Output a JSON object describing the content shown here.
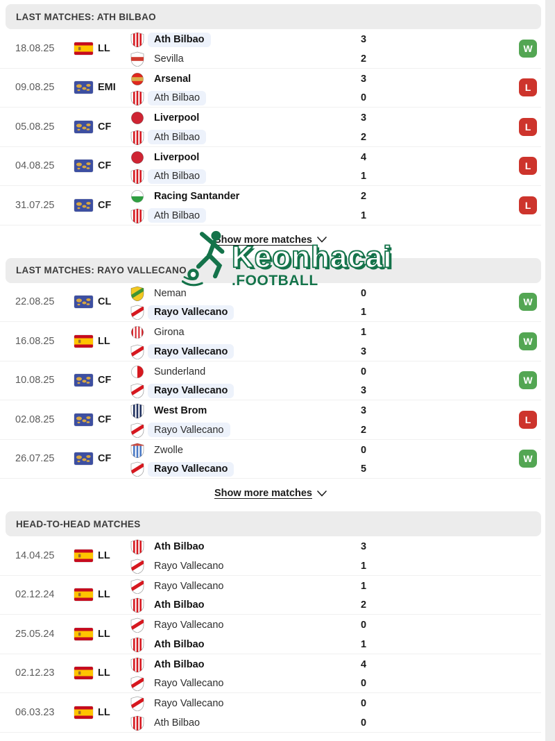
{
  "page": {
    "background": "#ffffff",
    "gutter_color": "#ececec",
    "header_bg": "#ececec"
  },
  "colors": {
    "win": "#53a653",
    "loss": "#cd342c",
    "highlight_chip": "#edf2fb",
    "watermark_green": "#14734a"
  },
  "icons": {
    "show_more_chevron": "chevron-down",
    "watermark_player": "soccer-player-kicking-ball"
  },
  "show_more_label": "Show more matches",
  "watermark": {
    "title": "Keonhacai",
    "subtitle": ".FOOTBALL"
  },
  "flags": {
    "es": {
      "name": "spain-flag",
      "colors": [
        "#c60b1e",
        "#ffc400",
        "#9a6a2f"
      ]
    },
    "world": {
      "name": "world-flag",
      "colors": [
        "#3d4fa1",
        "#d9a741"
      ]
    }
  },
  "crests": {
    "ath-bilbao": {
      "shape": "shield",
      "base": "#ffffff",
      "overlay": "#d6181f",
      "pattern": "stripes"
    },
    "sevilla": {
      "shape": "shield",
      "base": "#ffffff",
      "overlay": "#cf3a2e",
      "pattern": "band"
    },
    "arsenal": {
      "shape": "circle",
      "base": "#e0281e",
      "overlay": "#d8b04c",
      "pattern": "band"
    },
    "liverpool": {
      "shape": "circle",
      "base": "#cf2433",
      "overlay": "#cf2433",
      "pattern": "solid"
    },
    "racing-santander": {
      "shape": "circle",
      "base": "#ffffff",
      "overlay": "#2f9e41",
      "pattern": "bottom"
    },
    "neman": {
      "shape": "shield",
      "base": "#f2c822",
      "overlay": "#3f9432",
      "pattern": "diag"
    },
    "rayo-vallecano": {
      "shape": "shield",
      "base": "#ffffff",
      "overlay": "#d6181f",
      "pattern": "diag"
    },
    "girona": {
      "shape": "circle",
      "base": "#d6272e",
      "overlay": "#ffffff",
      "pattern": "stripes"
    },
    "sunderland": {
      "shape": "circle",
      "base": "#ffffff",
      "overlay": "#d6181f",
      "pattern": "right"
    },
    "west-brom": {
      "shape": "shield",
      "base": "#ffffff",
      "overlay": "#20315f",
      "pattern": "stripes"
    },
    "zwolle": {
      "shape": "shield",
      "base": "#ffffff",
      "overlay": "#4a79c4",
      "pattern": "stripes",
      "cap": "#d04a3c"
    }
  },
  "sections": [
    {
      "title": "LAST MATCHES: ATH BILBAO",
      "show_more": true,
      "matches": [
        {
          "date": "18.08.25",
          "flag": "es",
          "competition": "LL",
          "home": {
            "name": "Ath Bilbao",
            "score": "3",
            "bold": true,
            "highlight": true,
            "crest": "ath-bilbao"
          },
          "away": {
            "name": "Sevilla",
            "score": "2",
            "bold": false,
            "highlight": false,
            "crest": "sevilla"
          },
          "result": "W"
        },
        {
          "date": "09.08.25",
          "flag": "world",
          "competition": "EMI",
          "home": {
            "name": "Arsenal",
            "score": "3",
            "bold": true,
            "highlight": false,
            "crest": "arsenal"
          },
          "away": {
            "name": "Ath Bilbao",
            "score": "0",
            "bold": false,
            "highlight": true,
            "crest": "ath-bilbao"
          },
          "result": "L"
        },
        {
          "date": "05.08.25",
          "flag": "world",
          "competition": "CF",
          "home": {
            "name": "Liverpool",
            "score": "3",
            "bold": true,
            "highlight": false,
            "crest": "liverpool"
          },
          "away": {
            "name": "Ath Bilbao",
            "score": "2",
            "bold": false,
            "highlight": true,
            "crest": "ath-bilbao"
          },
          "result": "L"
        },
        {
          "date": "04.08.25",
          "flag": "world",
          "competition": "CF",
          "home": {
            "name": "Liverpool",
            "score": "4",
            "bold": true,
            "highlight": false,
            "crest": "liverpool"
          },
          "away": {
            "name": "Ath Bilbao",
            "score": "1",
            "bold": false,
            "highlight": true,
            "crest": "ath-bilbao"
          },
          "result": "L"
        },
        {
          "date": "31.07.25",
          "flag": "world",
          "competition": "CF",
          "home": {
            "name": "Racing Santander",
            "score": "2",
            "bold": true,
            "highlight": false,
            "crest": "racing-santander"
          },
          "away": {
            "name": "Ath Bilbao",
            "score": "1",
            "bold": false,
            "highlight": true,
            "crest": "ath-bilbao"
          },
          "result": "L"
        }
      ]
    },
    {
      "title": "LAST MATCHES: RAYO VALLECANO",
      "show_more": true,
      "matches": [
        {
          "date": "22.08.25",
          "flag": "world",
          "competition": "CL",
          "home": {
            "name": "Neman",
            "score": "0",
            "bold": false,
            "highlight": false,
            "crest": "neman"
          },
          "away": {
            "name": "Rayo Vallecano",
            "score": "1",
            "bold": true,
            "highlight": true,
            "crest": "rayo-vallecano"
          },
          "result": "W"
        },
        {
          "date": "16.08.25",
          "flag": "es",
          "competition": "LL",
          "home": {
            "name": "Girona",
            "score": "1",
            "bold": false,
            "highlight": false,
            "crest": "girona"
          },
          "away": {
            "name": "Rayo Vallecano",
            "score": "3",
            "bold": true,
            "highlight": true,
            "crest": "rayo-vallecano"
          },
          "result": "W"
        },
        {
          "date": "10.08.25",
          "flag": "world",
          "competition": "CF",
          "home": {
            "name": "Sunderland",
            "score": "0",
            "bold": false,
            "highlight": false,
            "crest": "sunderland"
          },
          "away": {
            "name": "Rayo Vallecano",
            "score": "3",
            "bold": true,
            "highlight": true,
            "crest": "rayo-vallecano"
          },
          "result": "W"
        },
        {
          "date": "02.08.25",
          "flag": "world",
          "competition": "CF",
          "home": {
            "name": "West Brom",
            "score": "3",
            "bold": true,
            "highlight": false,
            "crest": "west-brom"
          },
          "away": {
            "name": "Rayo Vallecano",
            "score": "2",
            "bold": false,
            "highlight": true,
            "crest": "rayo-vallecano"
          },
          "result": "L"
        },
        {
          "date": "26.07.25",
          "flag": "world",
          "competition": "CF",
          "home": {
            "name": "Zwolle",
            "score": "0",
            "bold": false,
            "highlight": false,
            "crest": "zwolle"
          },
          "away": {
            "name": "Rayo Vallecano",
            "score": "5",
            "bold": true,
            "highlight": true,
            "crest": "rayo-vallecano"
          },
          "result": "W"
        }
      ]
    },
    {
      "title": "HEAD-TO-HEAD MATCHES",
      "show_more": false,
      "matches": [
        {
          "date": "14.04.25",
          "flag": "es",
          "competition": "LL",
          "home": {
            "name": "Ath Bilbao",
            "score": "3",
            "bold": true,
            "highlight": false,
            "crest": "ath-bilbao"
          },
          "away": {
            "name": "Rayo Vallecano",
            "score": "1",
            "bold": false,
            "highlight": false,
            "crest": "rayo-vallecano"
          },
          "result": null
        },
        {
          "date": "02.12.24",
          "flag": "es",
          "competition": "LL",
          "home": {
            "name": "Rayo Vallecano",
            "score": "1",
            "bold": false,
            "highlight": false,
            "crest": "rayo-vallecano"
          },
          "away": {
            "name": "Ath Bilbao",
            "score": "2",
            "bold": true,
            "highlight": false,
            "crest": "ath-bilbao"
          },
          "result": null
        },
        {
          "date": "25.05.24",
          "flag": "es",
          "competition": "LL",
          "home": {
            "name": "Rayo Vallecano",
            "score": "0",
            "bold": false,
            "highlight": false,
            "crest": "rayo-vallecano"
          },
          "away": {
            "name": "Ath Bilbao",
            "score": "1",
            "bold": true,
            "highlight": false,
            "crest": "ath-bilbao"
          },
          "result": null
        },
        {
          "date": "02.12.23",
          "flag": "es",
          "competition": "LL",
          "home": {
            "name": "Ath Bilbao",
            "score": "4",
            "bold": true,
            "highlight": false,
            "crest": "ath-bilbao"
          },
          "away": {
            "name": "Rayo Vallecano",
            "score": "0",
            "bold": false,
            "highlight": false,
            "crest": "rayo-vallecano"
          },
          "result": null
        },
        {
          "date": "06.03.23",
          "flag": "es",
          "competition": "LL",
          "home": {
            "name": "Rayo Vallecano",
            "score": "0",
            "bold": false,
            "highlight": false,
            "crest": "rayo-vallecano"
          },
          "away": {
            "name": "Ath Bilbao",
            "score": "0",
            "bold": false,
            "highlight": false,
            "crest": "ath-bilbao"
          },
          "result": null
        }
      ]
    }
  ]
}
